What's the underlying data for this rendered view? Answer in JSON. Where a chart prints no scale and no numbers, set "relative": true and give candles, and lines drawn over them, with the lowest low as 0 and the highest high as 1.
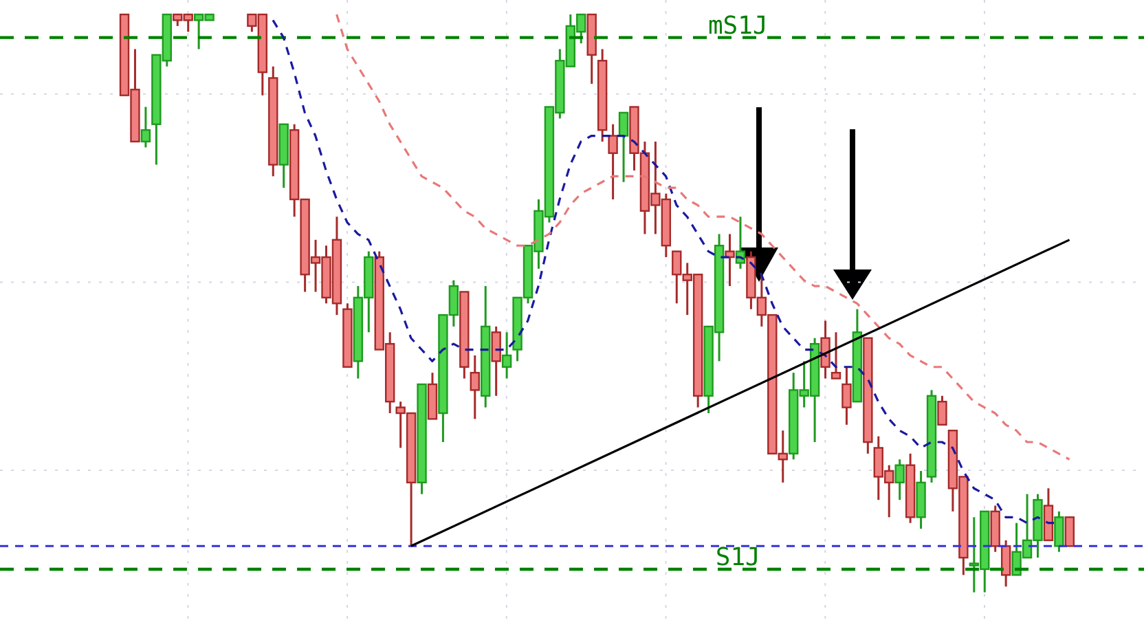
{
  "chart_data": {
    "type": "candlestick",
    "relative": true,
    "grid": true,
    "categories": [
      null,
      null,
      null,
      null,
      null,
      null,
      null,
      null,
      null,
      null,
      null,
      null,
      null,
      null,
      null,
      null,
      null,
      null,
      null,
      null,
      null,
      null,
      null,
      null,
      null,
      null,
      null,
      null,
      null,
      null,
      null,
      null,
      null,
      null,
      null,
      null,
      null,
      null,
      null,
      null,
      null,
      null,
      null,
      null,
      null,
      null,
      null,
      null,
      null,
      null,
      null,
      null,
      null,
      null,
      null,
      null,
      null,
      null,
      null,
      null,
      null,
      null,
      null,
      null,
      null,
      null,
      null,
      null,
      null,
      null,
      null,
      null,
      null,
      null,
      null,
      null,
      null,
      null,
      null,
      null,
      null,
      null,
      null,
      null,
      null,
      null,
      null,
      null,
      null,
      null
    ],
    "ohlc": [
      [
        1.0,
        1.0,
        0.86,
        0.86
      ],
      [
        0.87,
        0.94,
        0.78,
        0.78
      ],
      [
        0.78,
        0.84,
        0.77,
        0.8
      ],
      [
        0.81,
        0.93,
        0.74,
        0.93
      ],
      [
        0.92,
        1.0,
        0.91,
        1.0
      ],
      [
        1.0,
        1.0,
        0.98,
        0.99
      ],
      [
        1.0,
        1.0,
        0.97,
        0.99
      ],
      [
        0.99,
        1.0,
        0.94,
        1.0
      ],
      [
        0.99,
        1.0,
        0.99,
        1.0
      ],
      null,
      null,
      null,
      [
        1.0,
        1.0,
        0.97,
        0.98
      ],
      [
        1.0,
        1.0,
        0.86,
        0.9
      ],
      [
        0.89,
        0.91,
        0.72,
        0.74
      ],
      [
        0.74,
        0.81,
        0.7,
        0.81
      ],
      [
        0.8,
        0.81,
        0.65,
        0.68
      ],
      [
        0.68,
        0.68,
        0.52,
        0.55
      ],
      [
        0.58,
        0.61,
        0.52,
        0.57
      ],
      [
        0.58,
        0.6,
        0.5,
        0.51
      ],
      [
        0.61,
        0.65,
        0.48,
        0.5
      ],
      [
        0.49,
        0.5,
        0.39,
        0.39
      ],
      [
        0.4,
        0.53,
        0.37,
        0.51
      ],
      [
        0.51,
        0.59,
        0.45,
        0.58
      ],
      [
        0.58,
        0.59,
        0.42,
        0.42
      ],
      [
        0.43,
        0.45,
        0.31,
        0.33
      ],
      [
        0.32,
        0.33,
        0.25,
        0.31
      ],
      [
        0.31,
        0.31,
        0.08,
        0.19
      ],
      [
        0.19,
        0.36,
        0.17,
        0.36
      ],
      [
        0.36,
        0.38,
        0.3,
        0.3
      ],
      [
        0.31,
        0.48,
        0.26,
        0.48
      ],
      [
        0.48,
        0.54,
        0.46,
        0.53
      ],
      [
        0.52,
        0.52,
        0.37,
        0.39
      ],
      [
        0.38,
        0.41,
        0.3,
        0.35
      ],
      [
        0.34,
        0.53,
        0.32,
        0.46
      ],
      [
        0.45,
        0.46,
        0.34,
        0.4
      ],
      [
        0.39,
        0.45,
        0.37,
        0.41
      ],
      [
        0.42,
        0.51,
        0.4,
        0.51
      ],
      [
        0.51,
        0.6,
        0.5,
        0.6
      ],
      [
        0.59,
        0.68,
        0.56,
        0.66
      ],
      [
        0.65,
        0.84,
        0.64,
        0.84
      ],
      [
        0.83,
        0.94,
        0.82,
        0.92
      ],
      [
        0.91,
        1.0,
        0.91,
        0.98
      ],
      [
        0.97,
        1.0,
        0.95,
        1.0
      ],
      [
        1.0,
        1.0,
        0.88,
        0.93
      ],
      [
        0.92,
        0.94,
        0.78,
        0.8
      ],
      [
        0.79,
        0.81,
        0.68,
        0.76
      ],
      [
        0.79,
        0.83,
        0.71,
        0.83
      ],
      [
        0.84,
        0.84,
        0.73,
        0.76
      ],
      [
        0.76,
        0.78,
        0.62,
        0.66
      ],
      [
        0.69,
        0.78,
        0.62,
        0.67
      ],
      [
        0.68,
        0.69,
        0.58,
        0.6
      ],
      [
        0.59,
        0.59,
        0.5,
        0.55
      ],
      [
        0.55,
        0.57,
        0.48,
        0.54
      ],
      [
        0.55,
        0.55,
        0.32,
        0.34
      ],
      [
        0.34,
        0.46,
        0.31,
        0.46
      ],
      [
        0.45,
        0.62,
        0.4,
        0.6
      ],
      [
        0.59,
        0.62,
        0.53,
        0.58
      ],
      [
        0.57,
        0.65,
        0.56,
        0.59
      ],
      [
        0.58,
        0.59,
        0.49,
        0.51
      ],
      [
        0.51,
        0.55,
        0.46,
        0.48
      ],
      [
        0.48,
        0.48,
        0.24,
        0.24
      ],
      [
        0.24,
        0.28,
        0.19,
        0.23
      ],
      [
        0.24,
        0.38,
        0.23,
        0.35
      ],
      [
        0.34,
        0.4,
        0.32,
        0.35
      ],
      [
        0.34,
        0.44,
        0.26,
        0.43
      ],
      [
        0.44,
        0.47,
        0.37,
        0.39
      ],
      [
        0.38,
        0.45,
        0.37,
        0.37
      ],
      [
        0.36,
        0.39,
        0.29,
        0.32
      ],
      [
        0.33,
        0.49,
        0.33,
        0.45
      ],
      [
        0.44,
        0.44,
        0.24,
        0.26
      ],
      [
        0.25,
        0.27,
        0.16,
        0.2
      ],
      [
        0.21,
        0.22,
        0.13,
        0.19
      ],
      [
        0.19,
        0.23,
        0.16,
        0.22
      ],
      [
        0.22,
        0.24,
        0.12,
        0.13
      ],
      [
        0.13,
        0.21,
        0.11,
        0.19
      ],
      [
        0.2,
        0.35,
        0.19,
        0.34
      ],
      [
        0.33,
        0.34,
        0.29,
        0.29
      ],
      [
        0.28,
        0.28,
        0.14,
        0.18
      ],
      [
        0.2,
        0.2,
        0.03,
        0.06
      ],
      [
        0.05,
        0.13,
        0.0,
        0.05
      ],
      [
        0.04,
        0.14,
        0.0,
        0.14
      ],
      [
        0.14,
        0.15,
        0.07,
        0.08
      ],
      [
        0.08,
        0.09,
        0.01,
        0.03
      ],
      [
        0.03,
        0.12,
        0.03,
        0.07
      ],
      [
        0.06,
        0.17,
        0.06,
        0.09
      ],
      [
        0.09,
        0.17,
        0.06,
        0.16
      ],
      [
        0.15,
        0.18,
        0.09,
        0.09
      ],
      [
        0.08,
        0.14,
        0.07,
        0.13
      ],
      [
        0.13,
        0.13,
        0.08,
        0.08
      ]
    ],
    "series": [
      {
        "type": "line",
        "color": "#1a1aa0",
        "line_style": "dashed",
        "values": [
          null,
          null,
          null,
          null,
          null,
          null,
          null,
          null,
          null,
          null,
          null,
          null,
          null,
          null,
          0.99,
          0.96,
          0.9,
          0.83,
          0.79,
          0.73,
          0.68,
          0.64,
          0.62,
          0.61,
          0.57,
          0.53,
          0.49,
          0.44,
          0.42,
          0.4,
          0.42,
          0.43,
          0.42,
          0.42,
          0.42,
          0.42,
          0.42,
          0.44,
          0.47,
          0.53,
          0.61,
          0.68,
          0.74,
          0.78,
          0.79,
          0.79,
          0.79,
          0.79,
          0.78,
          0.76,
          0.74,
          0.72,
          0.67,
          0.65,
          0.62,
          0.59,
          0.58,
          0.58,
          0.58,
          0.57,
          0.55,
          0.5,
          0.46,
          0.44,
          0.42,
          0.42,
          0.41,
          0.39,
          0.39,
          0.39,
          0.37,
          0.33,
          0.3,
          0.28,
          0.27,
          0.25,
          0.26,
          0.26,
          0.25,
          0.21,
          0.18,
          0.17,
          0.16,
          0.13,
          0.13,
          0.12,
          0.13,
          0.12,
          0.12,
          null
        ]
      },
      {
        "type": "line",
        "color": "#e87878",
        "line_style": "dashed",
        "values": [
          null,
          null,
          null,
          null,
          null,
          null,
          null,
          null,
          null,
          null,
          null,
          null,
          null,
          null,
          null,
          null,
          null,
          null,
          null,
          null,
          1.0,
          0.94,
          0.91,
          0.88,
          0.85,
          0.81,
          0.78,
          0.75,
          0.72,
          0.71,
          0.7,
          0.68,
          0.66,
          0.65,
          0.63,
          0.62,
          0.61,
          0.6,
          0.6,
          0.61,
          0.62,
          0.64,
          0.67,
          0.69,
          0.7,
          0.71,
          0.72,
          0.72,
          0.72,
          0.72,
          0.71,
          0.7,
          0.7,
          0.68,
          0.67,
          0.65,
          0.65,
          0.65,
          0.64,
          0.63,
          0.62,
          0.6,
          0.58,
          0.56,
          0.54,
          0.53,
          0.53,
          0.52,
          0.51,
          0.5,
          0.48,
          0.46,
          0.44,
          0.43,
          0.41,
          0.4,
          0.39,
          0.39,
          0.37,
          0.35,
          0.33,
          0.32,
          0.31,
          0.29,
          0.28,
          0.26,
          0.26,
          0.25,
          0.24,
          0.23
        ]
      },
      {
        "type": "line",
        "color": "#000000",
        "line_style": "solid",
        "values": [
          null,
          null,
          null,
          null,
          null,
          null,
          null,
          null,
          null,
          null,
          null,
          null,
          null,
          null,
          null,
          null,
          null,
          null,
          null,
          null,
          null,
          null,
          null,
          null,
          null,
          null,
          null,
          0.08,
          null,
          null,
          null,
          null,
          null,
          null,
          null,
          null,
          null,
          null,
          null,
          null,
          null,
          null,
          null,
          null,
          null,
          null,
          null,
          null,
          null,
          null,
          null,
          null,
          null,
          null,
          null,
          null,
          null,
          null,
          null,
          null,
          null,
          null,
          null,
          null,
          null,
          null,
          null,
          null,
          null,
          null,
          null,
          null,
          null,
          null,
          null,
          null,
          null,
          null,
          null,
          null,
          null,
          null,
          null,
          null,
          null,
          null,
          null,
          null,
          null,
          0.61
        ]
      }
    ],
    "ref_lines": [
      {
        "axis": "y",
        "value": 0.96,
        "label": "mS1J",
        "color": "#008000",
        "line_style": "dashed"
      },
      {
        "axis": "y",
        "value": 0.04,
        "label": "S1J",
        "color": "#008000",
        "line_style": "dashed"
      },
      {
        "axis": "y",
        "value": 0.08,
        "color": "#3333dd",
        "line_style": "dashed"
      }
    ]
  }
}
